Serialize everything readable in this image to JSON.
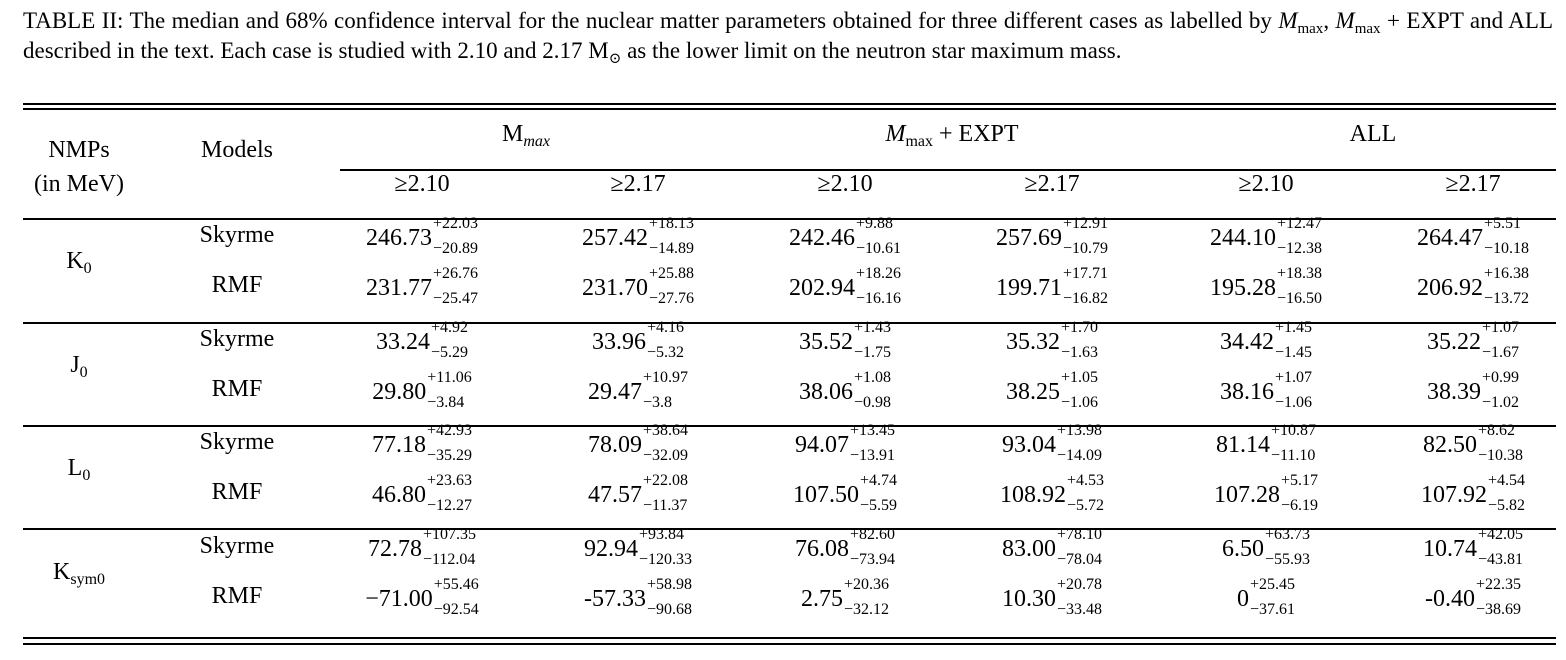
{
  "caption": {
    "prefix": "TABLE II:  The median and 68% confidence interval for the nuclear matter parameters obtained for three different cases as labelled by ",
    "mmax_symbol": "M",
    "mmax_sub": "max",
    "sep1": ", ",
    "mmax2_symbol": "M",
    "mmax2_sub": "max",
    "mid": " + EXPT and ALL described in the text.  Each case is studied with 2.10 and 2.17 M",
    "sun": "⊙",
    "suffix": " as the lower limit on the neutron star maximum mass."
  },
  "header": {
    "nmps_line1": "NMPs",
    "nmps_line2": "(in MeV)",
    "models": "Models",
    "group1_main": "M",
    "group1_sub": "max",
    "group2_main": "M",
    "group2_sub": "max",
    "group2_suffix": " + EXPT",
    "group3": "ALL",
    "sub_cols": [
      "≥2.10",
      "≥2.17",
      "≥2.10",
      "≥2.17",
      "≥2.10",
      "≥2.17"
    ]
  },
  "rows": [
    {
      "nmp_main": "K",
      "nmp_sub": "0",
      "models": [
        {
          "name": "Skyrme",
          "values": [
            {
              "v": "246.73",
              "up": "+22.03",
              "dn": "−20.89"
            },
            {
              "v": "257.42",
              "up": "+18.13",
              "dn": "−14.89"
            },
            {
              "v": "242.46",
              "up": "+9.88",
              "dn": "−10.61"
            },
            {
              "v": "257.69",
              "up": "+12.91",
              "dn": "−10.79"
            },
            {
              "v": "244.10",
              "up": "+12.47",
              "dn": "−12.38"
            },
            {
              "v": "264.47",
              "up": "+5.51",
              "dn": "−10.18"
            }
          ]
        },
        {
          "name": "RMF",
          "values": [
            {
              "v": "231.77",
              "up": "+26.76",
              "dn": "−25.47"
            },
            {
              "v": "231.70",
              "up": "+25.88",
              "dn": "−27.76"
            },
            {
              "v": "202.94",
              "up": "+18.26",
              "dn": "−16.16"
            },
            {
              "v": "199.71",
              "up": "+17.71",
              "dn": "−16.82"
            },
            {
              "v": "195.28",
              "up": "+18.38",
              "dn": "−16.50"
            },
            {
              "v": "206.92",
              "up": "+16.38",
              "dn": "−13.72"
            }
          ]
        }
      ]
    },
    {
      "nmp_main": "J",
      "nmp_sub": "0",
      "models": [
        {
          "name": "Skyrme",
          "values": [
            {
              "v": "33.24",
              "up": "+4.92",
              "dn": "−5.29"
            },
            {
              "v": "33.96",
              "up": "+4.16",
              "dn": "−5.32"
            },
            {
              "v": "35.52",
              "up": "+1.43",
              "dn": "−1.75"
            },
            {
              "v": "35.32",
              "up": "+1.70",
              "dn": "−1.63"
            },
            {
              "v": "34.42",
              "up": "+1.45",
              "dn": "−1.45"
            },
            {
              "v": "35.22",
              "up": "+1.07",
              "dn": "−1.67"
            }
          ]
        },
        {
          "name": "RMF",
          "values": [
            {
              "v": "29.80",
              "up": "+11.06",
              "dn": "−3.84"
            },
            {
              "v": "29.47",
              "up": "+10.97",
              "dn": "−3.8"
            },
            {
              "v": "38.06",
              "up": "+1.08",
              "dn": "−0.98"
            },
            {
              "v": "38.25",
              "up": "+1.05",
              "dn": "−1.06"
            },
            {
              "v": "38.16",
              "up": "+1.07",
              "dn": "−1.06"
            },
            {
              "v": "38.39",
              "up": "+0.99",
              "dn": "−1.02"
            }
          ]
        }
      ]
    },
    {
      "nmp_main": "L",
      "nmp_sub": "0",
      "models": [
        {
          "name": "Skyrme",
          "values": [
            {
              "v": "77.18",
              "up": "+42.93",
              "dn": "−35.29"
            },
            {
              "v": "78.09",
              "up": "+38.64",
              "dn": "−32.09"
            },
            {
              "v": "94.07",
              "up": "+13.45",
              "dn": "−13.91"
            },
            {
              "v": "93.04",
              "up": "+13.98",
              "dn": "−14.09"
            },
            {
              "v": "81.14",
              "up": "+10.87",
              "dn": "−11.10"
            },
            {
              "v": "82.50",
              "up": "+8.62",
              "dn": "−10.38"
            }
          ]
        },
        {
          "name": "RMF",
          "values": [
            {
              "v": "46.80",
              "up": "+23.63",
              "dn": "−12.27"
            },
            {
              "v": "47.57",
              "up": "+22.08",
              "dn": "−11.37"
            },
            {
              "v": "107.50",
              "up": "+4.74",
              "dn": "−5.59"
            },
            {
              "v": "108.92",
              "up": "+4.53",
              "dn": "−5.72"
            },
            {
              "v": "107.28",
              "up": "+5.17",
              "dn": "−6.19"
            },
            {
              "v": "107.92",
              "up": "+4.54",
              "dn": "−5.82"
            }
          ]
        }
      ]
    },
    {
      "nmp_main": "K",
      "nmp_sub": "sym0",
      "models": [
        {
          "name": "Skyrme",
          "values": [
            {
              "v": "72.78",
              "up": "+107.35",
              "dn": "−112.04"
            },
            {
              "v": "92.94",
              "up": "+93.84",
              "dn": "−120.33"
            },
            {
              "v": "76.08",
              "up": "+82.60",
              "dn": "−73.94"
            },
            {
              "v": "83.00",
              "up": "+78.10",
              "dn": "−78.04"
            },
            {
              "v": "6.50",
              "up": "+63.73",
              "dn": "−55.93"
            },
            {
              "v": "10.74",
              "up": "+42.05",
              "dn": "−43.81"
            }
          ]
        },
        {
          "name": "RMF",
          "values": [
            {
              "v": "−71.00",
              "up": "+55.46",
              "dn": "−92.54"
            },
            {
              "v": "-57.33",
              "up": "+58.98",
              "dn": "−90.68"
            },
            {
              "v": "2.75",
              "up": "+20.36",
              "dn": "−32.12"
            },
            {
              "v": "10.30",
              "up": "+20.78",
              "dn": "−33.48"
            },
            {
              "v": "0",
              "up": "+25.45",
              "dn": "−37.61"
            },
            {
              "v": "-0.40",
              "up": "+22.35",
              "dn": "−38.69"
            }
          ]
        }
      ]
    }
  ]
}
